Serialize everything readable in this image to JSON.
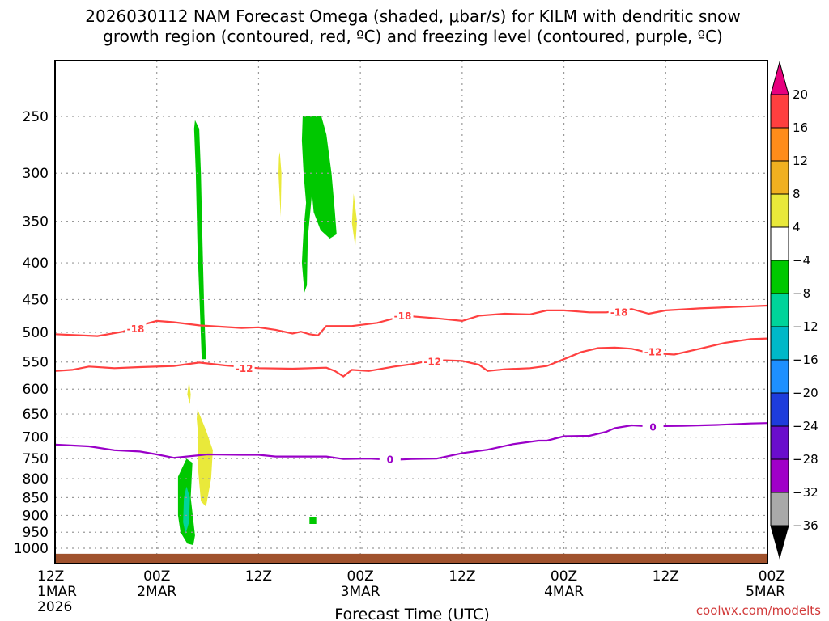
{
  "title_line1": "2026030112 NAM Forecast Omega (shaded, μbar/s) for KILM with dendritic snow",
  "title_line2": "growth region (contoured, red, ºC) and freezing level (contoured, purple, ºC)",
  "credit": "coolwx.com/modelts",
  "chart_data": {
    "type": "time-height contour",
    "xlabel": "Forecast Time (UTC)",
    "ylabel": "",
    "x_ticks": [
      {
        "label": "12Z",
        "sub": "1MAR",
        "sub2": "2026",
        "hour": 0
      },
      {
        "label": "00Z",
        "sub": "2MAR",
        "sub2": "",
        "hour": 12
      },
      {
        "label": "12Z",
        "sub": "",
        "sub2": "",
        "hour": 24
      },
      {
        "label": "00Z",
        "sub": "3MAR",
        "sub2": "",
        "hour": 36
      },
      {
        "label": "12Z",
        "sub": "",
        "sub2": "",
        "hour": 48
      },
      {
        "label": "00Z",
        "sub": "4MAR",
        "sub2": "",
        "hour": 60
      },
      {
        "label": "12Z",
        "sub": "",
        "sub2": "",
        "hour": 72
      },
      {
        "label": "00Z",
        "sub": "5MAR",
        "sub2": "",
        "hour": 84
      }
    ],
    "xlim": [
      0,
      84
    ],
    "y_scale": "log pressure (hPa), inverted",
    "ylim": [
      1040,
      200
    ],
    "y_ticks": [
      250,
      300,
      350,
      400,
      450,
      500,
      550,
      600,
      650,
      700,
      750,
      800,
      850,
      900,
      950,
      1000
    ],
    "grid": true,
    "colorbar": {
      "labels": [
        "20",
        "16",
        "12",
        "8",
        "4",
        "−4",
        "−8",
        "−12",
        "−16",
        "−20",
        "−24",
        "−28",
        "−32",
        "−36"
      ],
      "colors": [
        "#e6007e",
        "#ff3f3f",
        "#ff8c1a",
        "#f0b020",
        "#e9e93a",
        "#ffffff",
        "#00c800",
        "#00d49a",
        "#00b8c8",
        "#1e90ff",
        "#1e3cdc",
        "#6a0dcc",
        "#a000c8",
        "#a9a9a9",
        "#000000"
      ]
    },
    "contours": [
      {
        "name": "-18",
        "color": "#ff4040",
        "label_points": [
          [
            9.5,
            495
          ],
          [
            41,
            475
          ],
          [
            66.5,
            469
          ]
        ],
        "points": [
          [
            0,
            503
          ],
          [
            5,
            506
          ],
          [
            8,
            499
          ],
          [
            10,
            489
          ],
          [
            12,
            482
          ],
          [
            14,
            484
          ],
          [
            17,
            489
          ],
          [
            22,
            493
          ],
          [
            24,
            492
          ],
          [
            26,
            496
          ],
          [
            28,
            502
          ],
          [
            29,
            499
          ],
          [
            30,
            503
          ],
          [
            31,
            505
          ],
          [
            32,
            490
          ],
          [
            35,
            490
          ],
          [
            38,
            485
          ],
          [
            40,
            478
          ],
          [
            42,
            475
          ],
          [
            45,
            478
          ],
          [
            48,
            482
          ],
          [
            50,
            474
          ],
          [
            53,
            471
          ],
          [
            56,
            472
          ],
          [
            58,
            466
          ],
          [
            60,
            466
          ],
          [
            63,
            469
          ],
          [
            65,
            469
          ],
          [
            68,
            464
          ],
          [
            70,
            471
          ],
          [
            72,
            466
          ],
          [
            76,
            463
          ],
          [
            80,
            461
          ],
          [
            84,
            459
          ]
        ]
      },
      {
        "name": "-12",
        "color": "#ff4040",
        "label_points": [
          [
            22.3,
            562
          ],
          [
            44.5,
            550
          ],
          [
            70.5,
            533
          ]
        ],
        "points": [
          [
            0,
            566
          ],
          [
            2,
            564
          ],
          [
            4,
            558
          ],
          [
            7,
            561
          ],
          [
            10,
            559
          ],
          [
            14,
            557
          ],
          [
            17,
            551
          ],
          [
            20,
            556
          ],
          [
            24,
            561
          ],
          [
            28,
            562
          ],
          [
            32,
            560
          ],
          [
            33,
            566
          ],
          [
            34,
            576
          ],
          [
            35,
            564
          ],
          [
            37,
            566
          ],
          [
            40,
            558
          ],
          [
            42,
            554
          ],
          [
            44,
            548
          ],
          [
            46,
            547
          ],
          [
            48,
            548
          ],
          [
            50,
            555
          ],
          [
            51,
            566
          ],
          [
            53,
            563
          ],
          [
            56,
            561
          ],
          [
            58,
            557
          ],
          [
            60,
            545
          ],
          [
            62,
            533
          ],
          [
            64,
            526
          ],
          [
            66,
            525
          ],
          [
            68,
            527
          ],
          [
            70,
            534
          ],
          [
            73,
            537
          ],
          [
            76,
            527
          ],
          [
            79,
            517
          ],
          [
            82,
            511
          ],
          [
            84,
            510
          ]
        ]
      },
      {
        "name": "0",
        "color": "#9a00c8",
        "label_points": [
          [
            39.5,
            753
          ],
          [
            70.5,
            678
          ]
        ],
        "points": [
          [
            0,
            717
          ],
          [
            4,
            721
          ],
          [
            7,
            730
          ],
          [
            10,
            733
          ],
          [
            12,
            740
          ],
          [
            14,
            748
          ],
          [
            16,
            744
          ],
          [
            18,
            740
          ],
          [
            22,
            741
          ],
          [
            24,
            741
          ],
          [
            26,
            745
          ],
          [
            28,
            745
          ],
          [
            32,
            745
          ],
          [
            34,
            751
          ],
          [
            37,
            750
          ],
          [
            40,
            753
          ],
          [
            42,
            751
          ],
          [
            45,
            750
          ],
          [
            48,
            737
          ],
          [
            51,
            729
          ],
          [
            54,
            716
          ],
          [
            57,
            708
          ],
          [
            58,
            708
          ],
          [
            60,
            698
          ],
          [
            63,
            697
          ],
          [
            65,
            688
          ],
          [
            66,
            680
          ],
          [
            68,
            674
          ],
          [
            70,
            676
          ],
          [
            74,
            675
          ],
          [
            78,
            673
          ],
          [
            82,
            670
          ],
          [
            84,
            669
          ]
        ]
      }
    ],
    "shaded": [
      {
        "value": "-4 to -8",
        "color": "#00c800",
        "polygon": [
          [
            16.5,
            253
          ],
          [
            17.0,
            260
          ],
          [
            17.2,
            300
          ],
          [
            17.4,
            380
          ],
          [
            17.6,
            470
          ],
          [
            17.8,
            545
          ],
          [
            17.3,
            545
          ],
          [
            17.1,
            470
          ],
          [
            16.8,
            380
          ],
          [
            16.6,
            300
          ],
          [
            16.4,
            260
          ]
        ]
      },
      {
        "value": "-4 to -8",
        "color": "#00c800",
        "polygon": [
          [
            29.2,
            250
          ],
          [
            31.4,
            250
          ],
          [
            32.0,
            265
          ],
          [
            32.6,
            300
          ],
          [
            33.0,
            340
          ],
          [
            33.2,
            365
          ],
          [
            32.4,
            370
          ],
          [
            31.3,
            360
          ],
          [
            30.5,
            340
          ],
          [
            30.3,
            320
          ],
          [
            29.8,
            370
          ],
          [
            29.7,
            430
          ],
          [
            29.4,
            440
          ],
          [
            29.1,
            400
          ],
          [
            29.3,
            360
          ],
          [
            29.6,
            330
          ],
          [
            29.3,
            300
          ],
          [
            29.1,
            270
          ]
        ]
      },
      {
        "value": "4 to 8",
        "color": "#e9e93a",
        "polygon": [
          [
            26.5,
            280
          ],
          [
            26.7,
            300
          ],
          [
            26.6,
            345
          ],
          [
            26.35,
            300
          ],
          [
            26.4,
            285
          ]
        ]
      },
      {
        "value": "4 to 8",
        "color": "#e9e93a",
        "polygon": [
          [
            35.2,
            320
          ],
          [
            35.6,
            350
          ],
          [
            35.4,
            380
          ],
          [
            35.0,
            352
          ]
        ]
      },
      {
        "value": "4 to 8",
        "color": "#e9e93a",
        "polygon": [
          [
            15.8,
            585
          ],
          [
            16.0,
            610
          ],
          [
            15.9,
            630
          ],
          [
            15.6,
            610
          ]
        ]
      },
      {
        "value": "4 to 8",
        "color": "#e9e93a",
        "polygon": [
          [
            16.8,
            640
          ],
          [
            17.8,
            685
          ],
          [
            18.6,
            730
          ],
          [
            18.4,
            800
          ],
          [
            17.8,
            875
          ],
          [
            17.2,
            860
          ],
          [
            17.0,
            810
          ],
          [
            16.8,
            760
          ],
          [
            16.9,
            700
          ],
          [
            16.7,
            660
          ]
        ]
      },
      {
        "value": "-4 to -8",
        "color": "#00c800",
        "polygon": [
          [
            14.5,
            795
          ],
          [
            15.5,
            750
          ],
          [
            16.2,
            760
          ],
          [
            16.0,
            850
          ],
          [
            16.5,
            960
          ],
          [
            16.3,
            990
          ],
          [
            15.6,
            985
          ],
          [
            14.8,
            950
          ],
          [
            14.5,
            900
          ]
        ]
      },
      {
        "value": "-8 to -12",
        "color": "#00d49a",
        "polygon": [
          [
            15.5,
            820
          ],
          [
            15.9,
            850
          ],
          [
            15.8,
            920
          ],
          [
            15.4,
            955
          ],
          [
            15.1,
            920
          ],
          [
            15.2,
            850
          ]
        ]
      },
      {
        "value": "-4 to -8",
        "color": "#00c800",
        "polygon": [
          [
            30.0,
            905
          ],
          [
            30.8,
            905
          ],
          [
            30.8,
            925
          ],
          [
            30.0,
            925
          ]
        ]
      }
    ],
    "ground": {
      "color": "#a0522d",
      "top_hpa": 1018
    }
  }
}
